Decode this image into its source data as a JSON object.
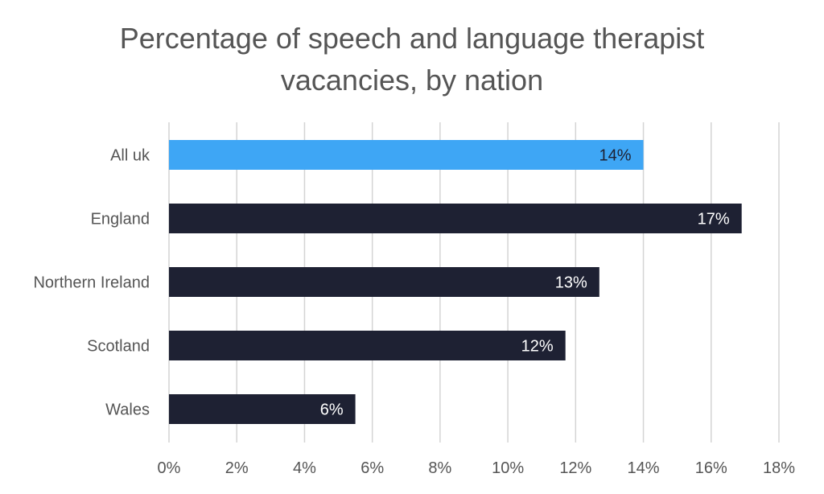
{
  "chart_data": {
    "type": "bar",
    "orientation": "horizontal",
    "title_lines": [
      "Percentage of speech and language therapist",
      "vacancies, by nation"
    ],
    "categories": [
      "All uk",
      "England",
      "Northern Ireland",
      "Scotland",
      "Wales"
    ],
    "values": [
      14.0,
      16.9,
      12.7,
      11.7,
      5.5
    ],
    "data_labels": [
      "14%",
      "17%",
      "13%",
      "12%",
      "6%"
    ],
    "xlim": [
      0,
      18
    ],
    "x_ticks": [
      "0%",
      "2%",
      "4%",
      "6%",
      "8%",
      "10%",
      "12%",
      "14%",
      "16%",
      "18%"
    ],
    "grid": true,
    "legend": "none",
    "colors": {
      "highlight": "#3ea6f5",
      "bar": "#1e2133",
      "highlight_label": "#1e2133",
      "bar_label": "#ffffff",
      "grid": "#d4d4d4",
      "text": "#555555"
    }
  }
}
